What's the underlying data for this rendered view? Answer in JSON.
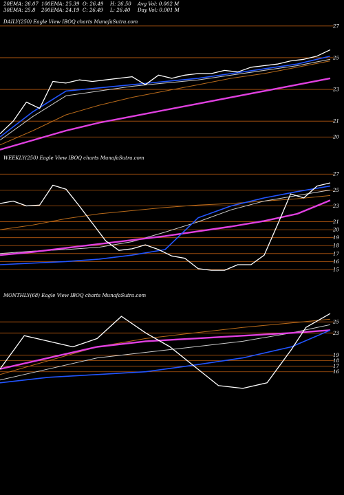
{
  "header": {
    "ema20": "20EMA: 26.07",
    "ema100": "100EMA: 25.39",
    "open": "O: 26.49",
    "high": "H: 26.50",
    "avg_vol": "Avg Vol: 0.002  M",
    "ema30": "30EMA: 25.8",
    "ema200": "200EMA: 24.19",
    "close": "C: 26.49",
    "low": "L: 26.40",
    "day_vol": "Day Vol: 0.001 M"
  },
  "colors": {
    "background": "#000000",
    "price": "#ffffff",
    "ema_fast": "#2255ff",
    "ema_mid": "#cccccc",
    "ema_slow": "#b86a1a",
    "ema_long": "#e040e0",
    "level_line": "#b85a10"
  },
  "chart_data": [
    {
      "type": "line",
      "title": "DAILY(250) Eagle  View  IBOQ charts MunafaSutra.com",
      "ylim": [
        19.1,
        27.6
      ],
      "level_lines": [
        27,
        25,
        23,
        21,
        20
      ],
      "tick_labels": [
        "27",
        "25",
        "23",
        "21",
        "20"
      ],
      "series": [
        {
          "role": "price",
          "x": [
            0,
            10,
            20,
            30,
            40,
            50,
            60,
            70,
            80,
            90,
            100,
            110,
            120,
            130,
            140,
            150,
            160,
            170,
            180,
            190,
            200,
            210,
            220,
            230,
            240,
            250
          ],
          "values": [
            20.2,
            21.0,
            22.2,
            21.8,
            23.5,
            23.4,
            23.6,
            23.5,
            23.6,
            23.7,
            23.8,
            23.3,
            23.9,
            23.7,
            23.9,
            24.0,
            24.0,
            24.2,
            24.1,
            24.4,
            24.5,
            24.6,
            24.8,
            24.9,
            25.1,
            25.5
          ]
        },
        {
          "role": "ema_fast",
          "x": [
            0,
            25,
            50,
            75,
            100,
            125,
            150,
            175,
            200,
            225,
            250
          ],
          "values": [
            20.0,
            21.6,
            22.9,
            23.1,
            23.3,
            23.5,
            23.7,
            24.0,
            24.3,
            24.6,
            25.1
          ]
        },
        {
          "role": "ema_mid",
          "x": [
            0,
            25,
            50,
            75,
            100,
            125,
            150,
            175,
            200,
            225,
            250
          ],
          "values": [
            19.8,
            21.3,
            22.6,
            22.9,
            23.2,
            23.4,
            23.6,
            23.9,
            24.2,
            24.5,
            24.9
          ]
        },
        {
          "role": "ema_slow",
          "x": [
            0,
            25,
            50,
            75,
            100,
            125,
            150,
            175,
            200,
            225,
            250
          ],
          "values": [
            19.5,
            20.4,
            21.4,
            22.0,
            22.5,
            22.9,
            23.3,
            23.7,
            24.0,
            24.4,
            24.8
          ]
        },
        {
          "role": "ema_long",
          "x": [
            0,
            25,
            50,
            75,
            100,
            125,
            150,
            175,
            200,
            225,
            250
          ],
          "values": [
            19.2,
            19.8,
            20.4,
            20.9,
            21.3,
            21.7,
            22.1,
            22.5,
            22.9,
            23.3,
            23.7
          ]
        }
      ]
    },
    {
      "type": "line",
      "title": "WEEKLY(250) Eagle  View  IBOQ charts MunafaSutra.com",
      "ylim": [
        14.3,
        27.8
      ],
      "level_lines": [
        27,
        25,
        23,
        21,
        20,
        19,
        18,
        17,
        16,
        15
      ],
      "tick_labels": [
        "27",
        "25",
        "23",
        "21",
        "20",
        "19",
        "18",
        "17",
        "16",
        "15"
      ],
      "series": [
        {
          "role": "price",
          "x": [
            0,
            10,
            20,
            30,
            40,
            50,
            60,
            70,
            80,
            90,
            100,
            110,
            120,
            130,
            140,
            150,
            160,
            170,
            180,
            190,
            200,
            210,
            220,
            230,
            240,
            250
          ],
          "values": [
            23.3,
            23.6,
            23.0,
            23.1,
            25.6,
            25.1,
            23.0,
            20.8,
            18.6,
            17.4,
            17.6,
            18.1,
            17.5,
            16.7,
            16.4,
            15.1,
            14.9,
            14.9,
            15.6,
            15.6,
            16.8,
            20.6,
            24.5,
            24.0,
            25.5,
            25.9
          ]
        },
        {
          "role": "ema_fast",
          "x": [
            0,
            25,
            50,
            75,
            100,
            125,
            150,
            175,
            200,
            225,
            250
          ],
          "values": [
            15.6,
            15.8,
            16.0,
            16.3,
            16.8,
            17.5,
            21.5,
            23.0,
            24.0,
            24.8,
            25.5
          ]
        },
        {
          "role": "ema_mid",
          "x": [
            0,
            25,
            50,
            75,
            100,
            125,
            150,
            175,
            200,
            225,
            250
          ],
          "values": [
            17.0,
            17.3,
            17.5,
            17.8,
            18.5,
            19.7,
            21.0,
            22.5,
            23.6,
            24.3,
            25.0
          ]
        },
        {
          "role": "ema_slow",
          "x": [
            0,
            25,
            50,
            75,
            100,
            125,
            150,
            175,
            200,
            225,
            250
          ],
          "values": [
            20.0,
            20.6,
            21.4,
            22.0,
            22.4,
            22.8,
            23.1,
            23.3,
            23.6,
            23.9,
            24.3
          ]
        },
        {
          "role": "ema_long",
          "x": [
            0,
            25,
            50,
            75,
            100,
            125,
            150,
            175,
            200,
            225,
            250
          ],
          "values": [
            16.8,
            17.2,
            17.7,
            18.2,
            18.7,
            19.2,
            19.8,
            20.4,
            21.1,
            22.0,
            23.7
          ]
        }
      ]
    },
    {
      "type": "line",
      "title": "MONTHLY(68) Eagle  View  IBOQ charts MunafaSutra.com",
      "ylim": [
        -5.0,
        28.0
      ],
      "level_lines": [
        25,
        23,
        19,
        18,
        17,
        16
      ],
      "tick_labels": [
        "25",
        "23",
        "19",
        "18",
        "17",
        "16"
      ],
      "series": [
        {
          "role": "price",
          "x": [
            0,
            5,
            10,
            15,
            20,
            25,
            30,
            35,
            40,
            45,
            50,
            55,
            60,
            63,
            68
          ],
          "values": [
            16.5,
            22.5,
            21.5,
            20.5,
            22.0,
            26.0,
            23.0,
            20.5,
            17.0,
            13.5,
            13.0,
            14.0,
            20.0,
            24.0,
            26.5
          ]
        },
        {
          "role": "ema_fast",
          "x": [
            0,
            10,
            20,
            30,
            40,
            50,
            60,
            68
          ],
          "values": [
            14.0,
            15.0,
            15.5,
            16.0,
            17.2,
            18.5,
            20.5,
            23.5
          ]
        },
        {
          "role": "ema_mid",
          "x": [
            0,
            10,
            20,
            30,
            40,
            50,
            60,
            68
          ],
          "values": [
            14.5,
            16.5,
            18.5,
            19.5,
            20.5,
            21.5,
            23.0,
            24.5
          ]
        },
        {
          "role": "ema_slow",
          "x": [
            0,
            10,
            20,
            30,
            40,
            50,
            60,
            68
          ],
          "values": [
            15.5,
            18.0,
            20.5,
            22.0,
            23.0,
            24.0,
            24.8,
            25.5
          ]
        },
        {
          "role": "ema_long",
          "x": [
            0,
            10,
            20,
            30,
            40,
            50,
            60,
            68
          ],
          "values": [
            16.5,
            18.5,
            20.5,
            21.5,
            22.0,
            22.5,
            23.0,
            23.5
          ]
        }
      ]
    }
  ]
}
